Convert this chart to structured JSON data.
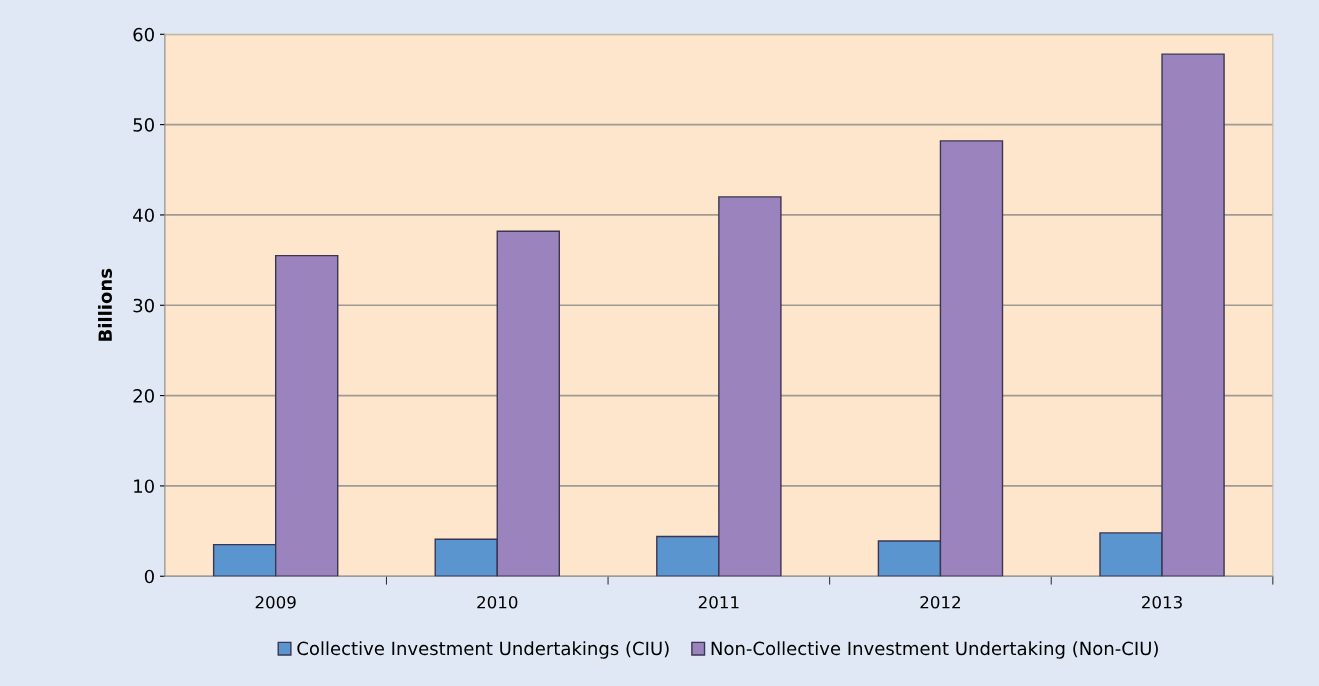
{
  "chart_data": {
    "type": "bar",
    "ylabel": "Billions",
    "categories": [
      "2009",
      "2010",
      "2011",
      "2012",
      "2013"
    ],
    "series": [
      {
        "name": "Collective Investment Undertakings (CIU)",
        "color": "#5b95d0",
        "values": [
          3.5,
          4.1,
          4.4,
          3.9,
          4.8
        ]
      },
      {
        "name": "Non-Collective Investment Undertaking (Non-CIU)",
        "color": "#9b84be",
        "values": [
          35.5,
          38.2,
          42.0,
          48.2,
          57.8
        ]
      }
    ],
    "ylim": [
      0,
      60
    ],
    "yticks": [
      0,
      10,
      20,
      30,
      40,
      50,
      60
    ],
    "grid": "y",
    "legend": "bottom"
  }
}
